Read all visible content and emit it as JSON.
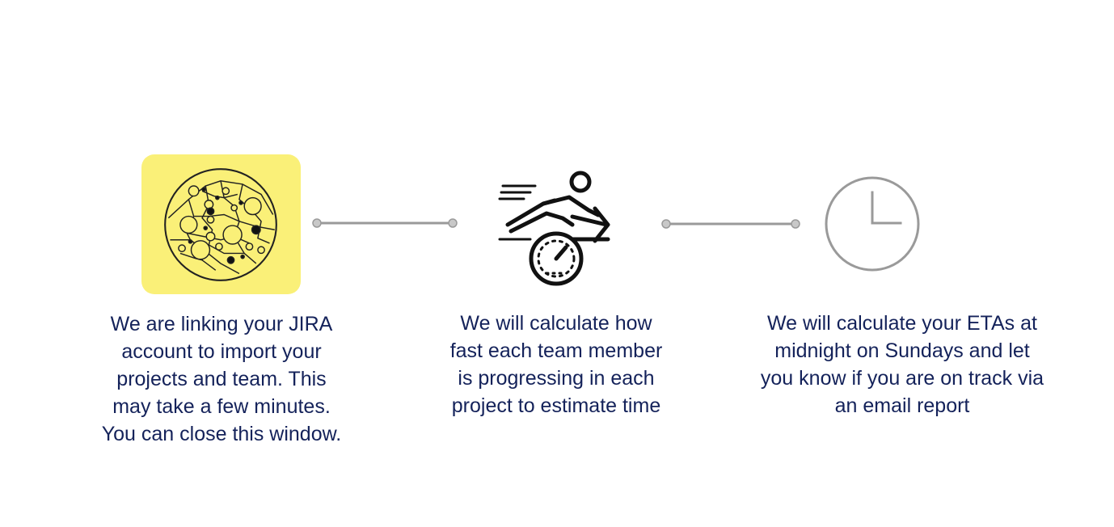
{
  "steps": [
    {
      "icon": "network-nodes-icon",
      "text": "We are linking your JIRA\naccount to  import your\nprojects and team. This\nmay take a few minutes.\nYou can close this window."
    },
    {
      "icon": "runner-speedometer-icon",
      "text": "We will calculate how\nfast each team member\nis progressing in each\nproject to estimate time"
    },
    {
      "icon": "clock-icon",
      "text": "We will calculate your ETAs at\nmidnight on Sundays and let\nyou know if you are on track via\nan email report"
    }
  ],
  "colors": {
    "highlight_tile": "#faf078",
    "text": "#14225a",
    "connector": "#9a9a9a",
    "clock": "#9a9a9a",
    "icon_stroke": "#111111"
  }
}
